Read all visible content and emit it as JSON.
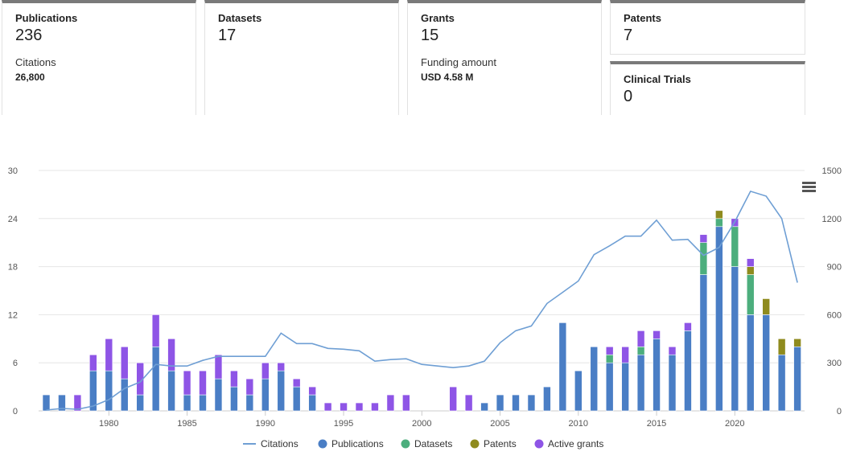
{
  "cards": {
    "publications": {
      "label": "Publications",
      "value": "236",
      "sublabel": "Citations",
      "subvalue": "26,800"
    },
    "datasets": {
      "label": "Datasets",
      "value": "17"
    },
    "grants": {
      "label": "Grants",
      "value": "15",
      "sublabel": "Funding amount",
      "subvalue": "USD 4.58 M"
    },
    "patents": {
      "label": "Patents",
      "value": "7"
    },
    "clinical_trials": {
      "label": "Clinical Trials",
      "value": "0"
    }
  },
  "chart_data": {
    "type": "bar",
    "stacked": true,
    "x": [
      1976,
      1977,
      1978,
      1979,
      1980,
      1981,
      1982,
      1983,
      1984,
      1985,
      1986,
      1987,
      1988,
      1989,
      1990,
      1991,
      1992,
      1993,
      1994,
      1995,
      1996,
      1997,
      1998,
      1999,
      2000,
      2001,
      2002,
      2003,
      2004,
      2005,
      2006,
      2007,
      2008,
      2009,
      2010,
      2011,
      2012,
      2013,
      2014,
      2015,
      2016,
      2017,
      2018,
      2019,
      2020,
      2021,
      2022,
      2023,
      2024
    ],
    "x_tick_labels": [
      "1980",
      "1985",
      "1990",
      "1995",
      "2000",
      "2005",
      "2010",
      "2015",
      "2020"
    ],
    "y_left_ticks": [
      "0",
      "6",
      "12",
      "18",
      "24",
      "30"
    ],
    "y_right_ticks": [
      "0",
      "300",
      "600",
      "900",
      "1200",
      "1500"
    ],
    "ylim_left": [
      0,
      30
    ],
    "ylim_right": [
      0,
      1500
    ],
    "series": [
      {
        "name": "Publications",
        "color": "#4a7ec5",
        "values": [
          2,
          2,
          0,
          5,
          5,
          4,
          2,
          8,
          5,
          2,
          2,
          4,
          3,
          2,
          4,
          5,
          3,
          2,
          0,
          0,
          0,
          0,
          0,
          0,
          0,
          0,
          0,
          0,
          1,
          2,
          2,
          2,
          3,
          11,
          5,
          8,
          6,
          6,
          7,
          9,
          7,
          10,
          17,
          23,
          18,
          12,
          12,
          7,
          8
        ]
      },
      {
        "name": "Datasets",
        "color": "#4cae7d",
        "values": [
          0,
          0,
          0,
          0,
          0,
          0,
          0,
          0,
          0,
          0,
          0,
          0,
          0,
          0,
          0,
          0,
          0,
          0,
          0,
          0,
          0,
          0,
          0,
          0,
          0,
          0,
          0,
          0,
          0,
          0,
          0,
          0,
          0,
          0,
          0,
          0,
          1,
          0,
          1,
          0,
          0,
          0,
          4,
          1,
          5,
          5,
          0,
          0,
          0
        ]
      },
      {
        "name": "Patents",
        "color": "#8f8b1e",
        "values": [
          0,
          0,
          0,
          0,
          0,
          0,
          0,
          0,
          0,
          0,
          0,
          0,
          0,
          0,
          0,
          0,
          0,
          0,
          0,
          0,
          0,
          0,
          0,
          0,
          0,
          0,
          0,
          0,
          0,
          0,
          0,
          0,
          0,
          0,
          0,
          0,
          0,
          0,
          0,
          0,
          0,
          0,
          0,
          1,
          0,
          1,
          2,
          2,
          1
        ]
      },
      {
        "name": "Active grants",
        "color": "#8e55e6",
        "values": [
          0,
          0,
          2,
          2,
          4,
          4,
          4,
          4,
          4,
          3,
          3,
          3,
          2,
          2,
          2,
          1,
          1,
          1,
          1,
          1,
          1,
          1,
          2,
          2,
          0,
          0,
          3,
          2,
          0,
          0,
          0,
          0,
          0,
          0,
          0,
          0,
          1,
          2,
          2,
          1,
          1,
          1,
          1,
          0,
          1,
          1,
          0,
          0,
          0
        ]
      }
    ],
    "line_series": {
      "name": "Citations",
      "color": "#6f9fd4",
      "axis": "right",
      "values": [
        5,
        15,
        10,
        30,
        70,
        140,
        180,
        290,
        280,
        280,
        315,
        340,
        340,
        340,
        340,
        485,
        420,
        420,
        390,
        385,
        375,
        310,
        320,
        325,
        290,
        280,
        270,
        280,
        310,
        425,
        500,
        530,
        670,
        740,
        810,
        975,
        1030,
        1090,
        1090,
        1190,
        1065,
        1070,
        970,
        1020,
        1180,
        1370,
        1340,
        1200,
        800
      ]
    },
    "legend": [
      "Citations",
      "Publications",
      "Datasets",
      "Patents",
      "Active grants"
    ],
    "legend_position": "bottom"
  }
}
